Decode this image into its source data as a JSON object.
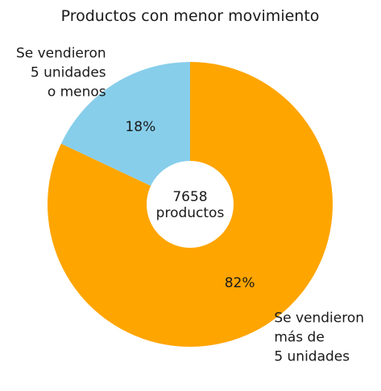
{
  "chart_data": {
    "type": "pie",
    "title": "Productos con menor movimiento",
    "slices": [
      {
        "label_lines": [
          "Se vendieron",
          "5 unidades",
          "o menos"
        ],
        "value": 18,
        "value_label": "18%",
        "color": "#87CEEB"
      },
      {
        "label_lines": [
          "Se vendieron",
          "más de",
          "5 unidades"
        ],
        "value": 82,
        "value_label": "82%",
        "color": "#FFA500"
      }
    ],
    "center_text": [
      "7658",
      "productos"
    ]
  }
}
